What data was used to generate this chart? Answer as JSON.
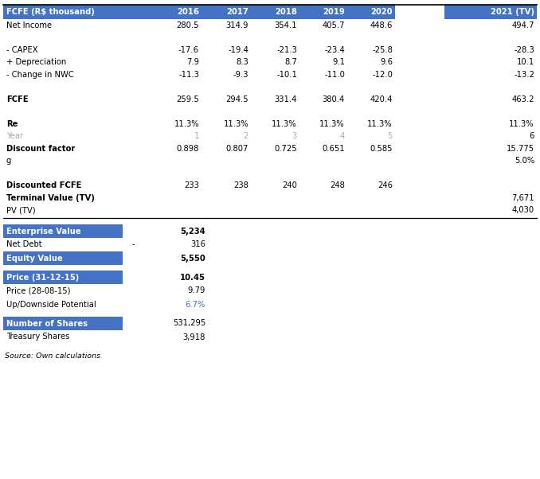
{
  "header_bg": "#4472c4",
  "tv_bg": "#4472c4",
  "blue_label_bg": "#4472c4",
  "blue_label_text": "#ffffff",
  "upside_color": "#4472c4",
  "year_color": "#aaaaaa",
  "fig_bg": "#ffffff",
  "col_labels": [
    "FCFE (R$ thousand)",
    "2016",
    "2017",
    "2018",
    "2019",
    "2020",
    "2021 (TV)"
  ],
  "rows": [
    {
      "label": "Net Income",
      "vals": [
        "280.5",
        "314.9",
        "354.1",
        "405.7",
        "448.6",
        "494.7"
      ],
      "bold": false,
      "gray": false
    },
    {
      "label": "",
      "vals": [
        "",
        "",
        "",
        "",
        "",
        ""
      ],
      "bold": false,
      "gray": false
    },
    {
      "label": "- CAPEX",
      "vals": [
        "-17.6",
        "-19.4",
        "-21.3",
        "-23.4",
        "-25.8",
        "-28.3"
      ],
      "bold": false,
      "gray": false
    },
    {
      "label": "+ Depreciation",
      "vals": [
        "7.9",
        "8.3",
        "8.7",
        "9.1",
        "9.6",
        "10.1"
      ],
      "bold": false,
      "gray": false
    },
    {
      "label": "- Change in NWC",
      "vals": [
        "-11.3",
        "-9.3",
        "-10.1",
        "-11.0",
        "-12.0",
        "-13.2"
      ],
      "bold": false,
      "gray": false
    },
    {
      "label": "",
      "vals": [
        "",
        "",
        "",
        "",
        "",
        ""
      ],
      "bold": false,
      "gray": false
    },
    {
      "label": "FCFE",
      "vals": [
        "259.5",
        "294.5",
        "331.4",
        "380.4",
        "420.4",
        "463.2"
      ],
      "bold": true,
      "gray": false
    },
    {
      "label": "",
      "vals": [
        "",
        "",
        "",
        "",
        "",
        ""
      ],
      "bold": false,
      "gray": false
    },
    {
      "label": "Re",
      "vals": [
        "11.3%",
        "11.3%",
        "11.3%",
        "11.3%",
        "11.3%",
        "11.3%"
      ],
      "bold": true,
      "gray": false
    },
    {
      "label": "Year",
      "vals": [
        "1",
        "2",
        "3",
        "4",
        "5",
        "6"
      ],
      "bold": false,
      "gray": true
    },
    {
      "label": "Discount factor",
      "vals": [
        "0.898",
        "0.807",
        "0.725",
        "0.651",
        "0.585",
        "15.775"
      ],
      "bold": true,
      "gray": false
    },
    {
      "label": "g",
      "vals": [
        "",
        "",
        "",
        "",
        "",
        "5.0%"
      ],
      "bold": false,
      "gray": false
    },
    {
      "label": "",
      "vals": [
        "",
        "",
        "",
        "",
        "",
        ""
      ],
      "bold": false,
      "gray": false
    },
    {
      "label": "Discounted FCFE",
      "vals": [
        "233",
        "238",
        "240",
        "248",
        "246",
        ""
      ],
      "bold": true,
      "gray": false
    },
    {
      "label": "Terminal Value (TV)",
      "vals": [
        "",
        "",
        "",
        "",
        "",
        "7,671"
      ],
      "bold": true,
      "gray": false
    },
    {
      "label": "PV (TV)",
      "vals": [
        "",
        "",
        "",
        "",
        "",
        "4,030"
      ],
      "bold": false,
      "gray": false
    }
  ],
  "bottom_sections": [
    [
      {
        "label": "Enterprise Value",
        "value": "5,234",
        "bold_l": true,
        "bold_v": true,
        "blue": true,
        "dash": "",
        "upside": false
      },
      {
        "label": "Net Debt",
        "value": "316",
        "bold_l": false,
        "bold_v": false,
        "blue": false,
        "dash": "-",
        "upside": false
      },
      {
        "label": "Equity Value",
        "value": "5,550",
        "bold_l": true,
        "bold_v": true,
        "blue": true,
        "dash": "",
        "upside": false
      }
    ],
    [
      {
        "label": "Price (31-12-15)",
        "value": "10.45",
        "bold_l": true,
        "bold_v": true,
        "blue": true,
        "dash": "",
        "upside": false
      },
      {
        "label": "Price (28-08-15)",
        "value": "9.79",
        "bold_l": false,
        "bold_v": false,
        "blue": false,
        "dash": "",
        "upside": false
      },
      {
        "label": "Up/Downside Potential",
        "value": "6.7%",
        "bold_l": false,
        "bold_v": false,
        "blue": false,
        "dash": "",
        "upside": true
      }
    ],
    [
      {
        "label": "Number of Shares",
        "value": "531,295",
        "bold_l": true,
        "bold_v": false,
        "blue": true,
        "dash": "",
        "upside": false
      },
      {
        "label": "Treasury Shares",
        "value": "3,918",
        "bold_l": false,
        "bold_v": false,
        "blue": false,
        "dash": "",
        "upside": false
      }
    ]
  ],
  "source_text": "Source: Own calculations"
}
